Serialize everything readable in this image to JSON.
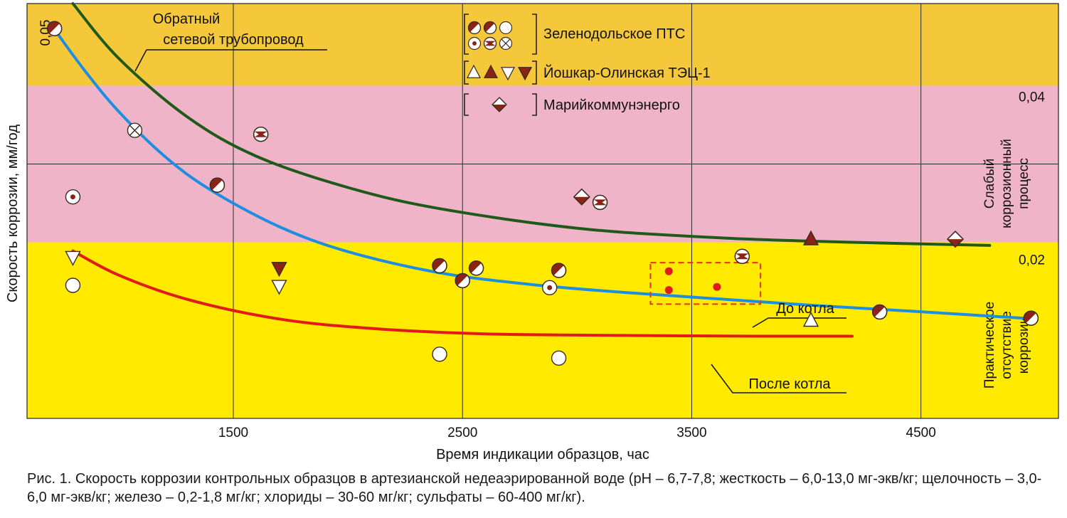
{
  "chart_data": {
    "type": "scatter",
    "xlabel": "Время индикации образцов, час",
    "ylabel": "Скорость коррозии, мм/год",
    "xlim": [
      600,
      5100
    ],
    "ylim": [
      0.0,
      0.053
    ],
    "x_ticks": [
      1500,
      2500,
      3500,
      4500
    ],
    "y_ticks": [
      0.02,
      0.04,
      0.05
    ],
    "x_tick_labels": [
      "1500",
      "2500",
      "3500",
      "4500"
    ],
    "y_tick_labels": {
      "top_left": "0,05",
      "right_upper": "0,04",
      "right_lower": "0,02"
    },
    "grid": true,
    "colors": {
      "zone_high": "#f5c83c",
      "zone_weak": "#f0b4c8",
      "zone_none": "#ffea00",
      "curve_return": "#1f5a1a",
      "curve_before": "#1e8fe0",
      "curve_after": "#e21a1a",
      "marker_fill": "#8a2416",
      "dashed_box": "#e8302a",
      "grid": "#2a2a2a"
    },
    "zones": [
      {
        "name": "",
        "y_from": 0.0425,
        "y_to": 0.053,
        "color": "#f5c83c"
      },
      {
        "name": "Слабый коррозионный процесс",
        "label_lines": [
          "Слабый",
          "коррозионный",
          "процесс"
        ],
        "y_from": 0.0225,
        "y_to": 0.0425,
        "color": "#f0b4c8"
      },
      {
        "name": "Практическое отсутствие коррозии",
        "label_lines": [
          "Практическое",
          "отсутствие",
          "коррозии"
        ],
        "y_from": 0.0,
        "y_to": 0.0225,
        "color": "#ffea00"
      }
    ],
    "curves": [
      {
        "name": "Обратный сетевой трубопровод",
        "label_lines": [
          "Обратный",
          "сетевой трубопровод"
        ],
        "color": "#1f5a1a",
        "x": [
          800,
          1000,
          1300,
          1600,
          2000,
          2400,
          3000,
          3600,
          4200,
          4800
        ],
        "y": [
          0.053,
          0.046,
          0.0385,
          0.0335,
          0.0295,
          0.0268,
          0.0243,
          0.0231,
          0.0225,
          0.0221
        ]
      },
      {
        "name": "До котла",
        "label_lines": [
          "До котла"
        ],
        "color": "#1e8fe0",
        "x": [
          700,
          850,
          1000,
          1200,
          1400,
          1700,
          2000,
          2400,
          2800,
          3200,
          3600,
          4000,
          4400,
          5000
        ],
        "y": [
          0.0505,
          0.0445,
          0.0392,
          0.0335,
          0.0292,
          0.0245,
          0.0213,
          0.0186,
          0.0171,
          0.0161,
          0.0153,
          0.0145,
          0.0138,
          0.0127
        ]
      },
      {
        "name": "После котла",
        "label_lines": [
          "После котла"
        ],
        "color": "#e21a1a",
        "x": [
          800,
          1000,
          1300,
          1700,
          2100,
          2600,
          3200,
          3800,
          4200
        ],
        "y": [
          0.0214,
          0.0183,
          0.0152,
          0.0127,
          0.0115,
          0.0108,
          0.0106,
          0.0105,
          0.0105
        ]
      }
    ],
    "points": [
      {
        "x": 720,
        "y": 0.0498,
        "marker": "half-diag"
      },
      {
        "x": 1070,
        "y": 0.0368,
        "marker": "circle-x"
      },
      {
        "x": 1620,
        "y": 0.0363,
        "marker": "circle-bowtie"
      },
      {
        "x": 1430,
        "y": 0.0298,
        "marker": "half-diag"
      },
      {
        "x": 800,
        "y": 0.0283,
        "marker": "circle-dot"
      },
      {
        "x": 3020,
        "y": 0.0283,
        "marker": "diamond-half"
      },
      {
        "x": 3100,
        "y": 0.0276,
        "marker": "circle-bowtie"
      },
      {
        "x": 4020,
        "y": 0.0229,
        "marker": "tri-up-filled"
      },
      {
        "x": 4650,
        "y": 0.0229,
        "marker": "diamond-half"
      },
      {
        "x": 3720,
        "y": 0.0207,
        "marker": "circle-bowtie"
      },
      {
        "x": 800,
        "y": 0.0206,
        "marker": "tri-down-open"
      },
      {
        "x": 800,
        "y": 0.017,
        "marker": "circle-open"
      },
      {
        "x": 1700,
        "y": 0.0192,
        "marker": "tri-down-filled"
      },
      {
        "x": 1700,
        "y": 0.0169,
        "marker": "tri-down-open"
      },
      {
        "x": 2400,
        "y": 0.0195,
        "marker": "half-diag"
      },
      {
        "x": 2560,
        "y": 0.0192,
        "marker": "half-diag"
      },
      {
        "x": 2500,
        "y": 0.0176,
        "marker": "half-diag"
      },
      {
        "x": 2920,
        "y": 0.0189,
        "marker": "half-diag"
      },
      {
        "x": 2880,
        "y": 0.0167,
        "marker": "circle-dot"
      },
      {
        "x": 4320,
        "y": 0.0136,
        "marker": "half-diag"
      },
      {
        "x": 4980,
        "y": 0.0128,
        "marker": "half-diag"
      },
      {
        "x": 4020,
        "y": 0.0125,
        "marker": "tri-up-open"
      },
      {
        "x": 2400,
        "y": 0.0082,
        "marker": "circle-open"
      },
      {
        "x": 2920,
        "y": 0.0077,
        "marker": "circle-open"
      },
      {
        "x": 3400,
        "y": 0.0188,
        "marker": "red-dot"
      },
      {
        "x": 3400,
        "y": 0.0164,
        "marker": "red-dot"
      },
      {
        "x": 3610,
        "y": 0.0168,
        "marker": "red-dot"
      }
    ],
    "dashed_box": {
      "x_from": 3320,
      "x_to": 3800,
      "y_from": 0.0146,
      "y_to": 0.0199
    },
    "legend": {
      "placement": "top-center",
      "groups": [
        {
          "label": "Зеленодольское ПТС",
          "markers": [
            "half-diag",
            "half-diag",
            "circle-open",
            "circle-dot",
            "circle-bowtie",
            "circle-x"
          ]
        },
        {
          "label": "Йошкар-Олинская ТЭЦ-1",
          "markers": [
            "tri-up-open",
            "tri-up-filled",
            "tri-down-open",
            "tri-down-filled"
          ]
        },
        {
          "label": "Марийкоммунэнерго",
          "markers": [
            "diamond-half"
          ]
        }
      ]
    }
  },
  "caption": "Рис. 1. Скорость коррозии контрольных образцов в артезианской недеаэрированной воде (pH – 6,7-7,8; жесткость – 6,0-13,0 мг-экв/кг; щелочность – 3,0-6,0 мг-экв/кг; железо – 0,2-1,8 мг/кг; хлориды – 30-60 мг/кг; сульфаты – 60-400 мг/кг)."
}
